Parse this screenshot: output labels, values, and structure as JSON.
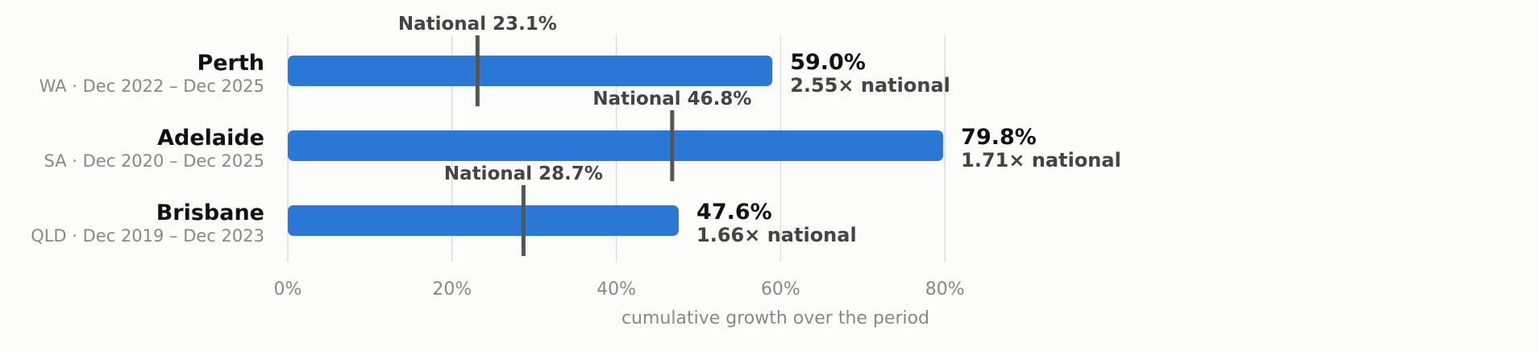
{
  "chart_data": {
    "type": "bar",
    "orientation": "horizontal",
    "xlabel": "cumulative growth over the period",
    "xlim": [
      0,
      100
    ],
    "xticks": [
      0,
      20,
      40,
      60,
      80
    ],
    "xtick_labels": [
      "0%",
      "20%",
      "40%",
      "60%",
      "80%"
    ],
    "grid": "vertical",
    "bar_color": "#2b78d6",
    "rows": [
      {
        "city": "Perth",
        "period": "WA · Dec 2022 – Dec 2025",
        "value": 59.0,
        "value_label": "59.0%",
        "national": 23.1,
        "national_label": "National 23.1%",
        "ratio_label": "2.55× national"
      },
      {
        "city": "Adelaide",
        "period": "SA · Dec 2020 – Dec 2025",
        "value": 79.8,
        "value_label": "79.8%",
        "national": 46.8,
        "national_label": "National 46.8%",
        "ratio_label": "1.71× national"
      },
      {
        "city": "Brisbane",
        "period": "QLD · Dec 2019 – Dec 2023",
        "value": 47.6,
        "value_label": "47.6%",
        "national": 28.7,
        "national_label": "National 28.7%",
        "ratio_label": "1.66× national"
      }
    ]
  }
}
